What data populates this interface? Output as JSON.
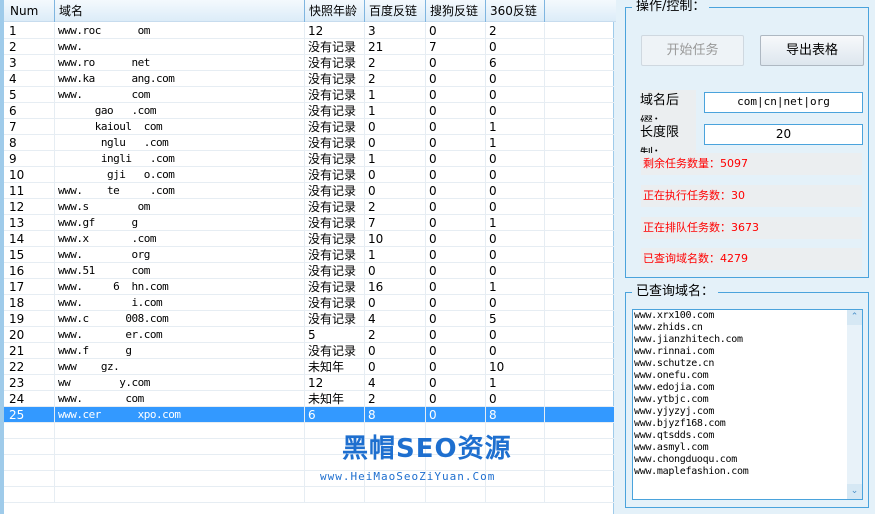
{
  "table": {
    "headers": [
      "Num",
      "域名",
      "快照年龄",
      "百度反链",
      "搜狗反链",
      "360反链"
    ],
    "rows": [
      [
        "1",
        "www.roc      om",
        "12",
        "3",
        "0",
        "2"
      ],
      [
        "2",
        "www.",
        "没有记录",
        "21",
        "7",
        "0"
      ],
      [
        "3",
        "www.ro      net",
        "没有记录",
        "2",
        "0",
        "6"
      ],
      [
        "4",
        "www.ka      ang.com",
        "没有记录",
        "2",
        "0",
        "0"
      ],
      [
        "5",
        "www.        com",
        "没有记录",
        "1",
        "0",
        "0"
      ],
      [
        "6",
        "      gao   .com",
        "没有记录",
        "1",
        "0",
        "0"
      ],
      [
        "7",
        "      kaioul  com",
        "没有记录",
        "0",
        "0",
        "1"
      ],
      [
        "8",
        "       nglu   .com",
        "没有记录",
        "0",
        "0",
        "1"
      ],
      [
        "9",
        "       ingli   .com",
        "没有记录",
        "1",
        "0",
        "0"
      ],
      [
        "10",
        "        gji   o.com",
        "没有记录",
        "0",
        "0",
        "0"
      ],
      [
        "11",
        "www.    te     .com",
        "没有记录",
        "0",
        "0",
        "0"
      ],
      [
        "12",
        "www.s        om",
        "没有记录",
        "2",
        "0",
        "0"
      ],
      [
        "13",
        "www.gf      g",
        "没有记录",
        "7",
        "0",
        "1"
      ],
      [
        "14",
        "www.x       .com",
        "没有记录",
        "10",
        "0",
        "0"
      ],
      [
        "15",
        "www.        org",
        "没有记录",
        "1",
        "0",
        "0"
      ],
      [
        "16",
        "www.51      com",
        "没有记录",
        "0",
        "0",
        "0"
      ],
      [
        "17",
        "www.     6  hn.com",
        "没有记录",
        "16",
        "0",
        "1"
      ],
      [
        "18",
        "www.        i.com",
        "没有记录",
        "0",
        "0",
        "0"
      ],
      [
        "19",
        "www.c      008.com",
        "没有记录",
        "4",
        "0",
        "5"
      ],
      [
        "20",
        "www.       er.com",
        "5",
        "2",
        "0",
        "0"
      ],
      [
        "21",
        "www.f      g",
        "没有记录",
        "0",
        "0",
        "0"
      ],
      [
        "22",
        "www    gz.",
        "未知年",
        "0",
        "0",
        "10"
      ],
      [
        "23",
        "ww        y.com",
        "12",
        "4",
        "0",
        "1"
      ],
      [
        "24",
        "www.       com",
        "未知年",
        "2",
        "0",
        "0"
      ],
      [
        "25",
        "www.cer      xpo.com",
        "6",
        "8",
        "0",
        "8"
      ]
    ],
    "selected_row": 25
  },
  "control": {
    "title": "操作/控制：",
    "start_label": "开始任务",
    "export_label": "导出表格",
    "suffix_label": "域名后缀：",
    "suffix_value": "com|cn|net|org",
    "length_label": "长度限制：",
    "length_value": "20",
    "stats": [
      "剩余任务数量：5097",
      "正在执行任务数：30",
      "正在排队任务数：3673",
      "已查询域名数：4279"
    ]
  },
  "queried": {
    "title": "已查询域名：",
    "items": [
      "www.xrx100.com",
      "www.zhids.cn",
      "www.jianzhitech.com",
      "www.rinnai.com",
      "www.schutze.cn",
      "www.onefu.com",
      "www.edojia.com",
      "www.ytbjc.com",
      "www.yjyzyj.com",
      "www.bjyzf168.com",
      "www.qtsdds.com",
      "www.asmyl.com",
      "www.chongduoqu.com",
      "www.maplefashion.com"
    ]
  },
  "watermark": {
    "title": "黑帽SEO资源",
    "url": "www.HeiMaoSeoZiYuan.Com"
  },
  "colors": {
    "selection": "#3399ff",
    "stat_text": "#ff0000",
    "border": "#4aa3dc"
  }
}
